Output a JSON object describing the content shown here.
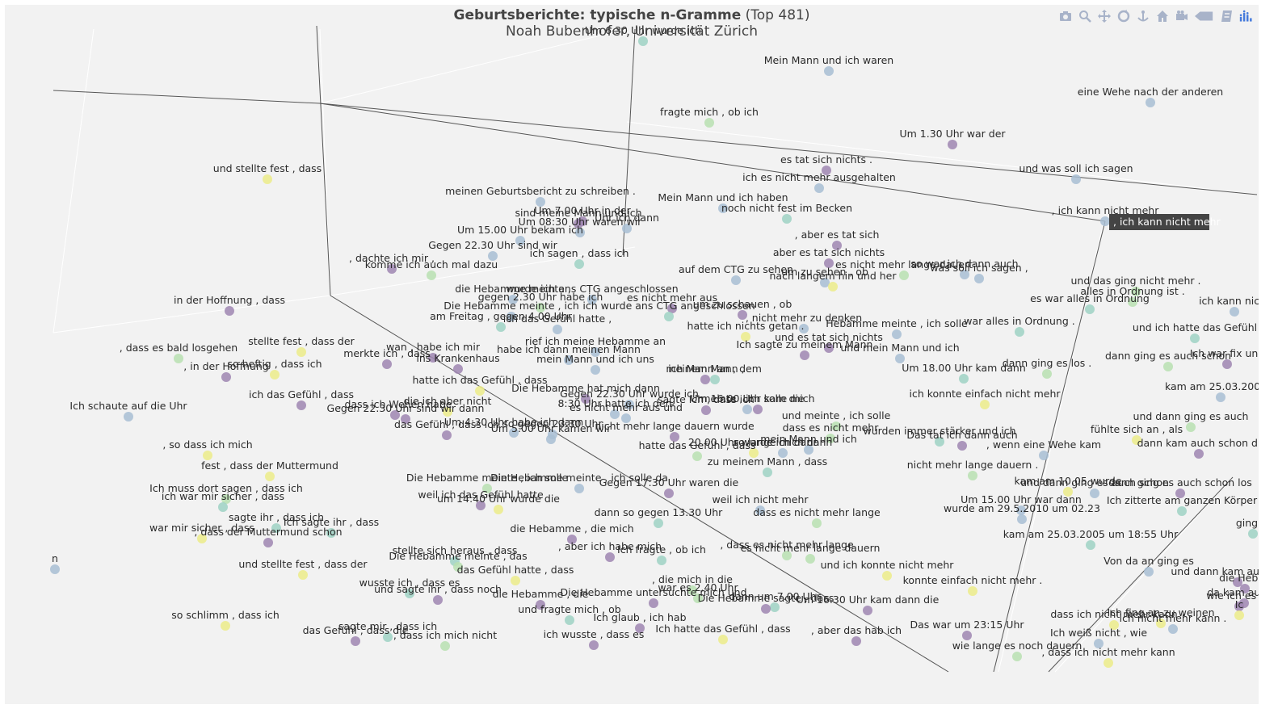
{
  "title": {
    "main": "Geburtsberichte: typische n-Gramme",
    "suffix": "(Top 481)",
    "subtitle": "Noah Bubenhofer, Universität Zürich"
  },
  "modebar": [
    {
      "name": "camera-icon"
    },
    {
      "name": "zoom-icon"
    },
    {
      "name": "pan-icon"
    },
    {
      "name": "orbit-rotation-icon"
    },
    {
      "name": "turntable-rotation-icon"
    },
    {
      "name": "home-icon"
    },
    {
      "name": "camera-reset-icon"
    },
    {
      "name": "hover-closest-icon"
    },
    {
      "name": "toggle-spike-lines-icon"
    },
    {
      "name": "plotly-logo-icon"
    }
  ],
  "hover_label": ", ich kann nicht mehr",
  "colors": {
    "background": "#f2f2f2",
    "purple": "#9f86b2",
    "blue": "#a8bed4",
    "teal": "#9fd2c4",
    "green": "#b9e0b2",
    "yellow": "#ecec8a",
    "text": "#2a2a2a",
    "axis": "#555555"
  },
  "chart_data": {
    "type": "scatter3d",
    "title": "Geburtsberichte: typische n-Gramme (Top 481)",
    "subtitle": "Noah Bubenhofer, Universität Zürich",
    "grid": true,
    "points": [
      {
        "label": "Um 6.30 Uhr wurde ich",
        "c": "teal"
      },
      {
        "label": "Mein Mann und ich waren",
        "c": "blue"
      },
      {
        "label": "eine Wehe nach der anderen",
        "c": "blue"
      },
      {
        "label": "fragte mich , ob ich",
        "c": "green"
      },
      {
        "label": "Um 1.30 Uhr war der",
        "c": "purple"
      },
      {
        "label": "und stellte fest , dass",
        "c": "yellow"
      },
      {
        "label": "es tat sich nichts .",
        "c": "purple"
      },
      {
        "label": "und was soll ich sagen",
        "c": "blue"
      },
      {
        "label": "ich es nicht mehr ausgehalten",
        "c": "blue"
      },
      {
        "label": "meinen Geburtsbericht zu schreiben .",
        "c": "blue"
      },
      {
        "label": "Mein Mann und ich haben",
        "c": "blue"
      },
      {
        "label": "Um 7.00 Uhr in der",
        "c": "purple"
      },
      {
        "label": "noch nicht fest im Becken",
        "c": "teal"
      },
      {
        "label": ", ich kann nicht mehr",
        "c": "blue"
      },
      {
        "label": "sind meine Mann und ich",
        "c": "purple"
      },
      {
        "label": "Um 08:30 Uhr waren wir",
        "c": "blue"
      },
      {
        "label": "Uhr ich dann",
        "c": "blue"
      },
      {
        "label": "Um 15.00 Uhr bekam ich",
        "c": "blue"
      },
      {
        "label": ", aber es tat sich",
        "c": "purple"
      },
      {
        "label": "Gegen 22.30 Uhr sind wir",
        "c": "blue"
      },
      {
        "label": "aber es tat sich nichts",
        "c": "purple"
      },
      {
        "label": ", dachte ich mir ,",
        "c": "purple"
      },
      {
        "label": "ich sagen , dass ich",
        "c": "teal"
      },
      {
        "label": "es nicht mehr lange dauert",
        "c": "green"
      },
      {
        "label": "so war ich dann auch",
        "c": "blue"
      },
      {
        "label": "komme ich auch mal dazu",
        "c": "green"
      },
      {
        "label": "auf dem CTG zu sehen",
        "c": "blue"
      },
      {
        "label": "um zu sehen , ob",
        "c": "blue"
      },
      {
        "label": "was soll ich sagen ,",
        "c": "blue"
      },
      {
        "label": "nach langem hin und her",
        "c": "yellow"
      },
      {
        "label": "und das ging nicht mehr .",
        "c": "green"
      },
      {
        "label": "alles in Ordnung ist .",
        "c": "green"
      },
      {
        "label": "es war alles in Ordnung",
        "c": "teal"
      },
      {
        "label": "ich kann nicht",
        "c": "blue"
      },
      {
        "label": "in der Hoffnung , dass",
        "c": "purple"
      },
      {
        "label": "die Hebamme meinte ,",
        "c": "blue"
      },
      {
        "label": "wurde ich ans CTG angeschlossen",
        "c": "blue"
      },
      {
        "label": "gegen 2.30 Uhr habe ich",
        "c": "green"
      },
      {
        "label": "es nicht mehr aus",
        "c": "purple"
      },
      {
        "label": "Die Hebamme meinte , ich",
        "c": "blue"
      },
      {
        "label": "ich wurde ans CTG angeschlossen",
        "c": "teal"
      },
      {
        "label": "um zu schauen , ob",
        "c": "purple"
      },
      {
        "label": "am Freitag , gegen 4.00 Uhr",
        "c": "teal"
      },
      {
        "label": "ich das Gefühl hatte ,",
        "c": "blue"
      },
      {
        "label": ", nicht mehr zu denken",
        "c": "blue"
      },
      {
        "label": "war alles in Ordnung .",
        "c": "teal"
      },
      {
        "label": "hatte ich nichts getan .",
        "c": "yellow"
      },
      {
        "label": "und ich hatte das Gefühl",
        "c": "teal"
      },
      {
        "label": "Hebamme meinte , ich solle",
        "c": "blue"
      },
      {
        "label": "und es tat sich nichts",
        "c": "purple"
      },
      {
        "label": ", dass es bald losgehen",
        "c": "green"
      },
      {
        "label": "stellte fest , dass der",
        "c": "yellow"
      },
      {
        "label": "wan , habe ich mir",
        "c": "purple"
      },
      {
        "label": "rief ich meine Hebamme an",
        "c": "blue"
      },
      {
        "label": "habe ich dann meinen Mann",
        "c": "blue"
      },
      {
        "label": "Ich sagte zu meinem Mann",
        "c": "purple"
      },
      {
        "label": "und mein Mann und ich",
        "c": "blue"
      },
      {
        "label": "dann ging es auch schon",
        "c": "green"
      },
      {
        "label": "Ich war fix und",
        "c": "purple"
      },
      {
        "label": "merkte ich , dass",
        "c": "purple"
      },
      {
        "label": "ins Krankenhaus",
        "c": "purple"
      },
      {
        "label": "mein Mann und ich uns",
        "c": "blue"
      },
      {
        "label": ", in der Hoffnung",
        "c": "purple"
      },
      {
        "label": "so heftig , dass ich",
        "c": "yellow"
      },
      {
        "label": "meinem Mann ,",
        "c": "purple"
      },
      {
        "label": "ich Mann an , dem",
        "c": "teal"
      },
      {
        "label": "Um 18.00 Uhr kam dann",
        "c": "teal"
      },
      {
        "label": "dann ging es los .",
        "c": "green"
      },
      {
        "label": "hatte ich das Gefühl , dass",
        "c": "yellow"
      },
      {
        "label": "Die Hebamme hat mich dann",
        "c": "purple"
      },
      {
        "label": "meinte , ich solle mich",
        "c": "purple"
      },
      {
        "label": "kam am 25.03.2005 u",
        "c": "blue"
      },
      {
        "label": "ich das Gefühl , dass",
        "c": "purple"
      },
      {
        "label": "Gegen 22.30 Uhr wurde ich",
        "c": "blue"
      },
      {
        "label": "sagte ich , dass ich",
        "c": "purple"
      },
      {
        "label": "Um 16.00 Uhr kam die",
        "c": "blue"
      },
      {
        "label": "ich konnte einfach nicht mehr",
        "c": "yellow"
      },
      {
        "label": "Ich schaute auf die Uhr",
        "c": "blue"
      },
      {
        "label": "die ich aber nicht",
        "c": "yellow"
      },
      {
        "label": "8:30 Uhr hatte ich den",
        "c": "blue"
      },
      {
        "label": "und meinte , ich solle",
        "c": "green"
      },
      {
        "label": ", dass ich Wehen habe",
        "c": "purple"
      },
      {
        "label": "Gegen 22.30 Uhr sind wir dann",
        "c": "purple"
      },
      {
        "label": "es nicht mehr aus und",
        "c": "blue"
      },
      {
        "label": "und dann ging es auch",
        "c": "green"
      },
      {
        "label": "fühlte sich an , als",
        "c": "yellow"
      },
      {
        "label": "das Gefühl , dass ich",
        "c": "purple"
      },
      {
        "label": "Um 4:30 Uhr habe ich dann",
        "c": "blue"
      },
      {
        "label": "so gegen 23.30 Uhr",
        "c": "blue"
      },
      {
        "label": "nicht mehr lange dauern wurde",
        "c": "purple"
      },
      {
        "label": "dass es nicht mehr",
        "c": "green"
      },
      {
        "label": "wurden immer stärker und ich",
        "c": "teal"
      },
      {
        "label": "Das tat ich dann auch",
        "c": "purple"
      },
      {
        "label": "dann kam auch schon di",
        "c": "purple"
      },
      {
        "label": "Um 5.00 Uhr kamen wir",
        "c": "blue"
      },
      {
        "label": "hatte das Gefühl , dass",
        "c": "green"
      },
      {
        "label": "mein Mann und ich",
        "c": "blue"
      },
      {
        "label": ", wenn eine Wehe kam",
        "c": "blue"
      },
      {
        "label": "20.00 Uhr wurde ich dann",
        "c": "yellow"
      },
      {
        "label": "so lange mich dann",
        "c": "blue"
      },
      {
        "label": ", so dass ich mich",
        "c": "yellow"
      },
      {
        "label": "zu meinem Mann , dass",
        "c": "teal"
      },
      {
        "label": "nicht mehr lange dauern .",
        "c": "green"
      },
      {
        "label": "fest , dass der Muttermund",
        "c": "yellow"
      },
      {
        "label": "Die Hebamme meinte , ich solle",
        "c": "green"
      },
      {
        "label": "Die Hebamme meinte , ich solle da",
        "c": "blue"
      },
      {
        "label": "Gegen 17:30 Uhr waren die",
        "c": "purple"
      },
      {
        "label": "kam am 10.05 wurde",
        "c": "yellow"
      },
      {
        "label": "und dann ging es auch schon",
        "c": "blue"
      },
      {
        "label": "dann ging es auch schon los",
        "c": "purple"
      },
      {
        "label": "Ich muss dort sagen , dass ich",
        "c": "green"
      },
      {
        "label": "weil ich das Gefühl hatte",
        "c": "purple"
      },
      {
        "label": "ich war mir sicher , dass",
        "c": "teal"
      },
      {
        "label": "Ich zitterte am ganzen Körper",
        "c": "teal"
      },
      {
        "label": "um 14:40 Uhr wurde die",
        "c": "yellow"
      },
      {
        "label": "weil ich nicht mehr",
        "c": "blue"
      },
      {
        "label": "Um 15.00 Uhr war dann",
        "c": "blue"
      },
      {
        "label": "wurde am 29.5.2010 um 02.23",
        "c": "blue"
      },
      {
        "label": "sagte ihr , dass ich",
        "c": "teal"
      },
      {
        "label": "dann so gegen 13.30 Uhr",
        "c": "teal"
      },
      {
        "label": "dass es nicht mehr lange",
        "c": "green"
      },
      {
        "label": "ging al",
        "c": "teal"
      },
      {
        "label": "Ich sagte ihr , dass",
        "c": "teal"
      },
      {
        "label": "war mir sicher , dass",
        "c": "yellow"
      },
      {
        "label": ", dass der Muttermund schon",
        "c": "purple"
      },
      {
        "label": "die Hebamme , die mich",
        "c": "purple"
      },
      {
        "label": "kam am 25.03.2005 um 18:55 Uhr",
        "c": "teal"
      },
      {
        "label": "stellte sich heraus , dass",
        "c": "teal"
      },
      {
        "label": ", aber ich habe mich",
        "c": "purple"
      },
      {
        "label": "Ich fragte , ob ich",
        "c": "teal"
      },
      {
        "label": ", dass es nicht mehr lange",
        "c": "green"
      },
      {
        "label": "es nicht mehr lange dauern",
        "c": "green"
      },
      {
        "label": "n",
        "c": "blue"
      },
      {
        "label": "und stellte fest , dass der",
        "c": "yellow"
      },
      {
        "label": "Die Hebamme meinte , das",
        "c": "green"
      },
      {
        "label": "Von da an ging es",
        "c": "blue"
      },
      {
        "label": "das Gefühl hatte , dass",
        "c": "yellow"
      },
      {
        "label": "und ich konnte nicht mehr",
        "c": "yellow"
      },
      {
        "label": "und dann kam auch schon",
        "c": "purple"
      },
      {
        "label": "die Heban",
        "c": "purple"
      },
      {
        "label": "wusste ich , dass es",
        "c": "teal"
      },
      {
        "label": ", die mich in die",
        "c": "green"
      },
      {
        "label": "konnte einfach nicht mehr .",
        "c": "yellow"
      },
      {
        "label": "da kam auch s",
        "c": "purple"
      },
      {
        "label": "und sagte ihr , dass noch",
        "c": "purple"
      },
      {
        "label": "die Hebamme , die",
        "c": "purple"
      },
      {
        "label": "war es 2.40 Uhr",
        "c": "green"
      },
      {
        "label": "Die Hebamme untersuchte mich und",
        "c": "purple"
      },
      {
        "label": "dann um 7.00 Uhr",
        "c": "teal"
      },
      {
        "label": "wie ich es mi",
        "c": "purple"
      },
      {
        "label": "Die Hebamme sagte , dass",
        "c": "purple"
      },
      {
        "label": "Um 16.30 Uhr kam dann die",
        "c": "purple"
      },
      {
        "label": "Ic",
        "c": "yellow"
      },
      {
        "label": "so schlimm , dass ich",
        "c": "yellow"
      },
      {
        "label": "und fragte mich , ob",
        "c": "teal"
      },
      {
        "label": "Ich glaub , ich hab",
        "c": "purple"
      },
      {
        "label": "Ich fing an zu weinen",
        "c": "yellow"
      },
      {
        "label": "dass ich nicht mehr kann",
        "c": "yellow"
      },
      {
        "label": "ich nicht mehr kann .",
        "c": "blue"
      },
      {
        "label": "Das war um 23:15 Uhr",
        "c": "purple"
      },
      {
        "label": "sagte mir , dass ich",
        "c": "teal"
      },
      {
        "label": "das Gefühl , dass die",
        "c": "purple"
      },
      {
        "label": ", dass ich mich nicht",
        "c": "green"
      },
      {
        "label": "ich wusste , dass es",
        "c": "purple"
      },
      {
        "label": "Ich hatte das Gefühl , dass",
        "c": "yellow"
      },
      {
        "label": ", aber das hab ich",
        "c": "purple"
      },
      {
        "label": "Ich weiß nicht , wie",
        "c": "blue"
      },
      {
        "label": "wie lange es noch dauern",
        "c": "green"
      },
      {
        "label": ", dass ich nicht mehr kann",
        "c": "yellow"
      }
    ]
  }
}
